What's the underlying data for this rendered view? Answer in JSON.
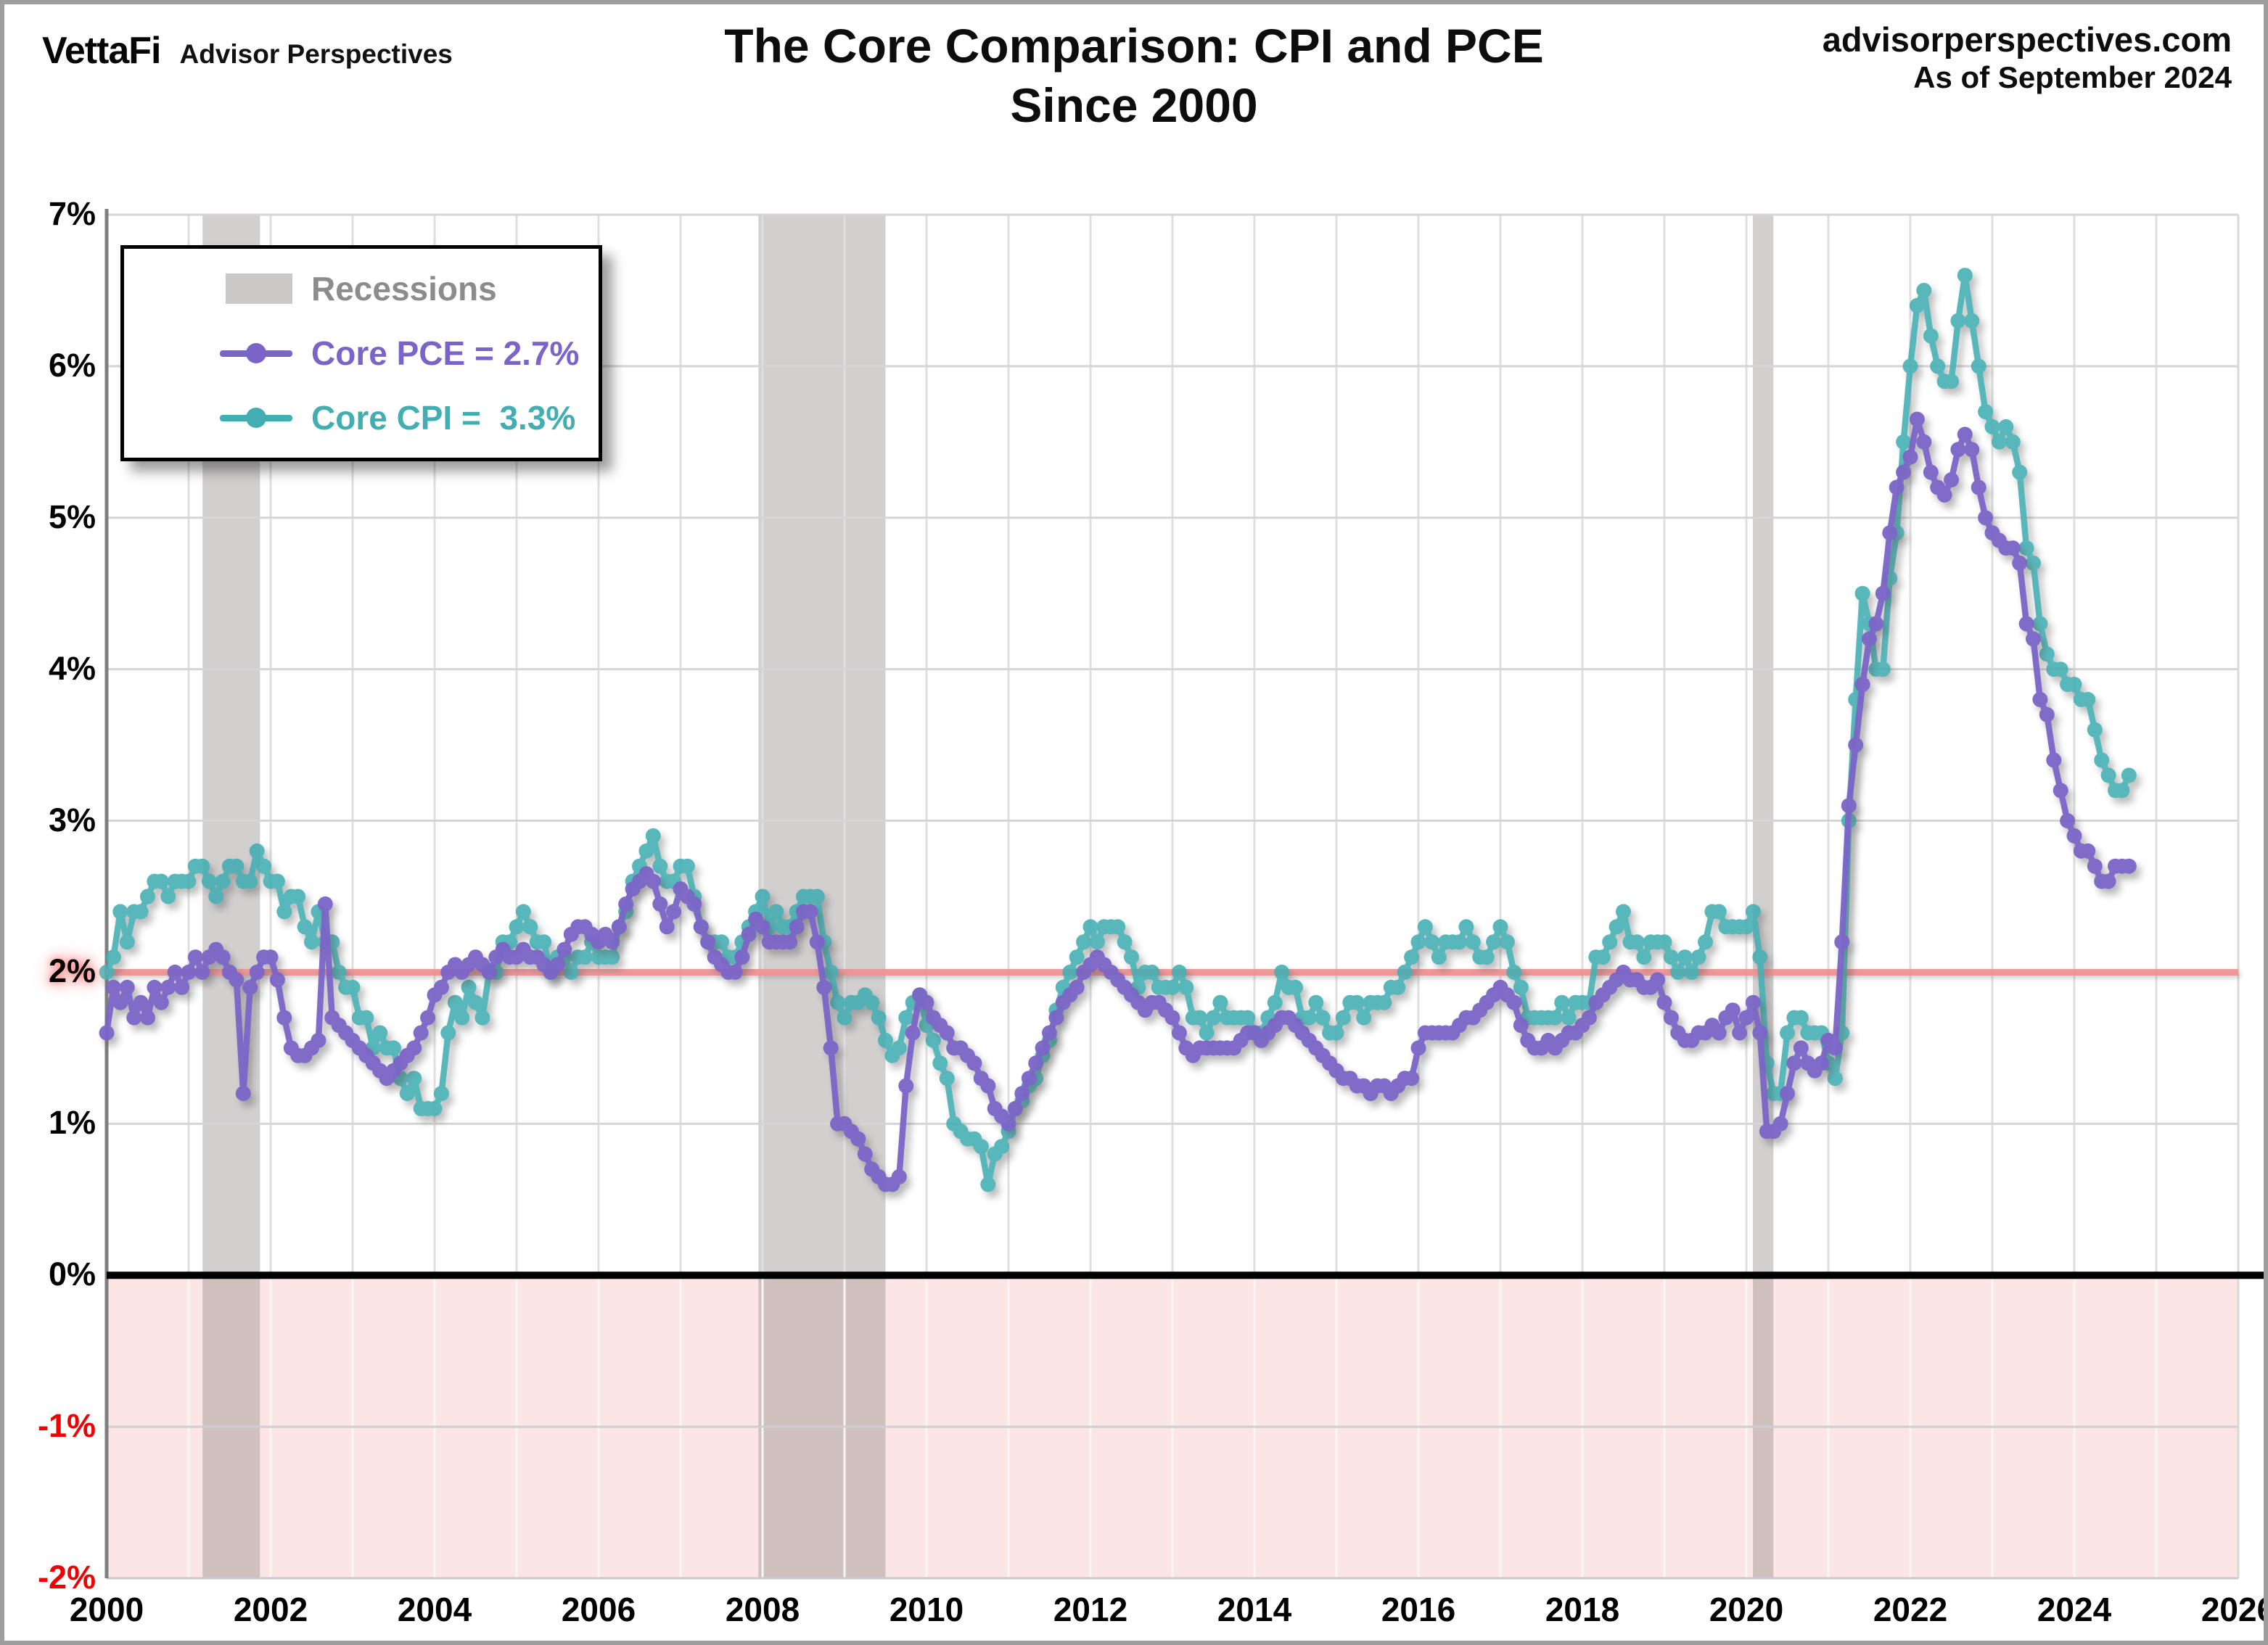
{
  "header": {
    "logo_text": "VettaFi",
    "logo_subtext": "Advisor Perspectives",
    "title_line1": "The Core Comparison: CPI and PCE",
    "title_line2": "Since 2000",
    "site": "advisorperspectives.com",
    "as_of": "As of September 2024"
  },
  "legend": {
    "recessions_label": "Recessions",
    "pce_label": "Core PCE = 2.7%",
    "cpi_label": "Core CPI =  3.3%"
  },
  "colors": {
    "pce_purple": "#7B64C7",
    "cpi_teal": "#42AEB2",
    "recession_band": "rgba(148,140,140,0.42)",
    "legend_swatch_gray": "#CBC8C8",
    "legend_recession_text": "#8C8C8C",
    "target_red": "#F09090",
    "below_zero_pink": "#FCE5E5",
    "grid_horizontal": "#D5D5D5",
    "grid_vertical": "#DFDFDF",
    "zero_line": "#000000",
    "axis_spine": "#7F7F7F",
    "negative_label_red": "#F00000"
  },
  "axes": {
    "y_ticks": [
      {
        "label": "7%",
        "v": 7,
        "style": "normal"
      },
      {
        "label": "6%",
        "v": 6,
        "style": "normal"
      },
      {
        "label": "5%",
        "v": 5,
        "style": "normal"
      },
      {
        "label": "4%",
        "v": 4,
        "style": "normal"
      },
      {
        "label": "3%",
        "v": 3,
        "style": "normal"
      },
      {
        "label": "2%",
        "v": 2,
        "style": "target"
      },
      {
        "label": "1%",
        "v": 1,
        "style": "normal"
      },
      {
        "label": "0%",
        "v": 0,
        "style": "normal"
      },
      {
        "label": "-1%",
        "v": -1,
        "style": "negative"
      },
      {
        "label": "-2%",
        "v": -2,
        "style": "negative"
      }
    ],
    "x_ticks": [
      {
        "label": "2000",
        "year": 2000
      },
      {
        "label": "2002",
        "year": 2002
      },
      {
        "label": "2004",
        "year": 2004
      },
      {
        "label": "2006",
        "year": 2006
      },
      {
        "label": "2008",
        "year": 2008
      },
      {
        "label": "2010",
        "year": 2010
      },
      {
        "label": "2012",
        "year": 2012
      },
      {
        "label": "2014",
        "year": 2014
      },
      {
        "label": "2016",
        "year": 2016
      },
      {
        "label": "2018",
        "year": 2018
      },
      {
        "label": "2020",
        "year": 2020
      },
      {
        "label": "2022",
        "year": 2022
      },
      {
        "label": "2024",
        "year": 2024
      },
      {
        "label": "2026",
        "year": 2026
      }
    ]
  },
  "chart_data": {
    "type": "line",
    "title": "The Core Comparison: CPI and PCE Since 2000",
    "xlabel": "",
    "ylabel": "",
    "xlim": [
      2000,
      2026
    ],
    "ylim": [
      -2,
      7
    ],
    "grid": true,
    "legend_position": "top-left",
    "x_start_year": 2000,
    "x_step_months": 1,
    "target_line_value": 2,
    "zero_line_value": 0,
    "shaded_below": 0,
    "recessions": [
      [
        2001.17,
        2001.87
      ],
      [
        2007.95,
        2009.5
      ],
      [
        2020.08,
        2020.33
      ]
    ],
    "series": [
      {
        "name": "Core CPI",
        "latest_label": "3.3%",
        "color": "#42AEB2",
        "values": [
          2.0,
          2.1,
          2.4,
          2.2,
          2.4,
          2.4,
          2.5,
          2.6,
          2.6,
          2.5,
          2.6,
          2.6,
          2.6,
          2.7,
          2.7,
          2.6,
          2.5,
          2.6,
          2.7,
          2.7,
          2.6,
          2.6,
          2.8,
          2.7,
          2.6,
          2.6,
          2.4,
          2.5,
          2.5,
          2.3,
          2.2,
          2.4,
          2.2,
          2.2,
          2.0,
          1.9,
          1.9,
          1.7,
          1.7,
          1.5,
          1.6,
          1.5,
          1.5,
          1.3,
          1.2,
          1.3,
          1.1,
          1.1,
          1.1,
          1.2,
          1.6,
          1.8,
          1.7,
          1.9,
          1.8,
          1.7,
          2.0,
          2.0,
          2.2,
          2.2,
          2.3,
          2.4,
          2.3,
          2.2,
          2.2,
          2.0,
          2.1,
          2.1,
          2.0,
          2.1,
          2.1,
          2.2,
          2.1,
          2.1,
          2.1,
          2.3,
          2.4,
          2.6,
          2.7,
          2.8,
          2.9,
          2.7,
          2.6,
          2.6,
          2.7,
          2.7,
          2.5,
          2.3,
          2.2,
          2.2,
          2.2,
          2.1,
          2.1,
          2.2,
          2.3,
          2.4,
          2.5,
          2.3,
          2.4,
          2.3,
          2.3,
          2.4,
          2.5,
          2.5,
          2.5,
          2.2,
          2.0,
          1.8,
          1.7,
          1.8,
          1.8,
          1.85,
          1.8,
          1.7,
          1.55,
          1.45,
          1.5,
          1.7,
          1.8,
          1.85,
          1.65,
          1.55,
          1.4,
          1.3,
          1.0,
          0.95,
          0.9,
          0.9,
          0.85,
          0.6,
          0.8,
          0.85,
          0.95,
          1.1,
          1.15,
          1.25,
          1.3,
          1.45,
          1.55,
          1.75,
          1.9,
          2.0,
          2.1,
          2.2,
          2.3,
          2.2,
          2.3,
          2.3,
          2.3,
          2.2,
          2.1,
          1.9,
          2.0,
          2.0,
          1.9,
          1.9,
          1.9,
          2.0,
          1.9,
          1.7,
          1.7,
          1.6,
          1.7,
          1.8,
          1.7,
          1.7,
          1.7,
          1.7,
          1.6,
          1.6,
          1.7,
          1.8,
          2.0,
          1.9,
          1.9,
          1.7,
          1.7,
          1.8,
          1.7,
          1.6,
          1.6,
          1.7,
          1.8,
          1.8,
          1.7,
          1.8,
          1.8,
          1.8,
          1.9,
          1.9,
          2.0,
          2.1,
          2.2,
          2.3,
          2.2,
          2.1,
          2.2,
          2.2,
          2.2,
          2.3,
          2.2,
          2.1,
          2.1,
          2.2,
          2.3,
          2.2,
          2.0,
          1.9,
          1.7,
          1.7,
          1.7,
          1.7,
          1.7,
          1.8,
          1.7,
          1.8,
          1.8,
          1.8,
          2.1,
          2.1,
          2.2,
          2.3,
          2.4,
          2.2,
          2.2,
          2.1,
          2.2,
          2.2,
          2.2,
          2.1,
          2.0,
          2.1,
          2.0,
          2.1,
          2.2,
          2.4,
          2.4,
          2.3,
          2.3,
          2.3,
          2.3,
          2.4,
          2.1,
          1.4,
          1.2,
          1.2,
          1.6,
          1.7,
          1.7,
          1.6,
          1.6,
          1.6,
          1.4,
          1.3,
          1.6,
          3.0,
          3.8,
          4.5,
          4.3,
          4.0,
          4.0,
          4.6,
          4.9,
          5.5,
          6.0,
          6.4,
          6.5,
          6.2,
          6.0,
          5.9,
          5.9,
          6.3,
          6.6,
          6.3,
          6.0,
          5.7,
          5.6,
          5.5,
          5.6,
          5.5,
          5.3,
          4.8,
          4.7,
          4.3,
          4.1,
          4.0,
          4.0,
          3.9,
          3.9,
          3.8,
          3.8,
          3.6,
          3.4,
          3.3,
          3.2,
          3.2,
          3.3
        ]
      },
      {
        "name": "Core PCE",
        "latest_label": "2.7%",
        "color": "#7B64C7",
        "values": [
          1.6,
          1.9,
          1.8,
          1.9,
          1.7,
          1.8,
          1.7,
          1.9,
          1.8,
          1.9,
          2.0,
          1.9,
          2.0,
          2.1,
          2.0,
          2.1,
          2.15,
          2.1,
          2.0,
          1.95,
          1.2,
          1.9,
          2.0,
          2.1,
          2.1,
          1.95,
          1.7,
          1.5,
          1.45,
          1.45,
          1.5,
          1.55,
          2.45,
          1.7,
          1.65,
          1.6,
          1.55,
          1.5,
          1.45,
          1.4,
          1.35,
          1.3,
          1.35,
          1.4,
          1.45,
          1.5,
          1.6,
          1.7,
          1.85,
          1.9,
          2.0,
          2.05,
          2.0,
          2.05,
          2.1,
          2.05,
          2.0,
          2.1,
          2.15,
          2.1,
          2.1,
          2.15,
          2.1,
          2.1,
          2.05,
          2.0,
          2.05,
          2.15,
          2.25,
          2.3,
          2.3,
          2.25,
          2.2,
          2.25,
          2.2,
          2.3,
          2.45,
          2.55,
          2.6,
          2.65,
          2.6,
          2.45,
          2.3,
          2.4,
          2.55,
          2.5,
          2.45,
          2.3,
          2.2,
          2.1,
          2.05,
          2.0,
          2.0,
          2.1,
          2.25,
          2.35,
          2.3,
          2.2,
          2.2,
          2.2,
          2.2,
          2.3,
          2.4,
          2.4,
          2.2,
          1.9,
          1.5,
          1.0,
          1.0,
          0.95,
          0.9,
          0.8,
          0.7,
          0.65,
          0.6,
          0.6,
          0.65,
          1.25,
          1.6,
          1.85,
          1.8,
          1.7,
          1.65,
          1.6,
          1.5,
          1.5,
          1.45,
          1.4,
          1.3,
          1.25,
          1.1,
          1.05,
          1.0,
          1.1,
          1.2,
          1.3,
          1.4,
          1.5,
          1.6,
          1.7,
          1.8,
          1.85,
          1.9,
          2.0,
          2.05,
          2.1,
          2.05,
          2.0,
          1.95,
          1.9,
          1.85,
          1.8,
          1.75,
          1.8,
          1.8,
          1.75,
          1.7,
          1.6,
          1.5,
          1.45,
          1.5,
          1.5,
          1.5,
          1.5,
          1.5,
          1.5,
          1.55,
          1.6,
          1.6,
          1.55,
          1.6,
          1.65,
          1.7,
          1.7,
          1.65,
          1.6,
          1.55,
          1.5,
          1.45,
          1.4,
          1.35,
          1.3,
          1.3,
          1.25,
          1.25,
          1.2,
          1.25,
          1.25,
          1.2,
          1.25,
          1.3,
          1.3,
          1.5,
          1.6,
          1.6,
          1.6,
          1.6,
          1.6,
          1.65,
          1.7,
          1.7,
          1.75,
          1.8,
          1.85,
          1.9,
          1.85,
          1.8,
          1.65,
          1.55,
          1.5,
          1.5,
          1.55,
          1.5,
          1.55,
          1.6,
          1.6,
          1.65,
          1.7,
          1.8,
          1.85,
          1.9,
          1.95,
          2.0,
          1.95,
          1.95,
          1.9,
          1.9,
          1.95,
          1.8,
          1.7,
          1.6,
          1.55,
          1.55,
          1.6,
          1.6,
          1.65,
          1.6,
          1.7,
          1.75,
          1.6,
          1.7,
          1.8,
          1.6,
          0.95,
          0.95,
          1.0,
          1.2,
          1.4,
          1.5,
          1.4,
          1.35,
          1.4,
          1.55,
          1.5,
          2.2,
          3.1,
          3.5,
          3.9,
          4.2,
          4.3,
          4.5,
          4.9,
          5.2,
          5.3,
          5.4,
          5.65,
          5.5,
          5.3,
          5.2,
          5.15,
          5.25,
          5.45,
          5.55,
          5.45,
          5.2,
          5.0,
          4.9,
          4.85,
          4.8,
          4.8,
          4.7,
          4.3,
          4.2,
          3.8,
          3.7,
          3.4,
          3.2,
          3.0,
          2.9,
          2.8,
          2.8,
          2.7,
          2.6,
          2.6,
          2.7,
          2.7,
          2.7
        ]
      }
    ]
  }
}
